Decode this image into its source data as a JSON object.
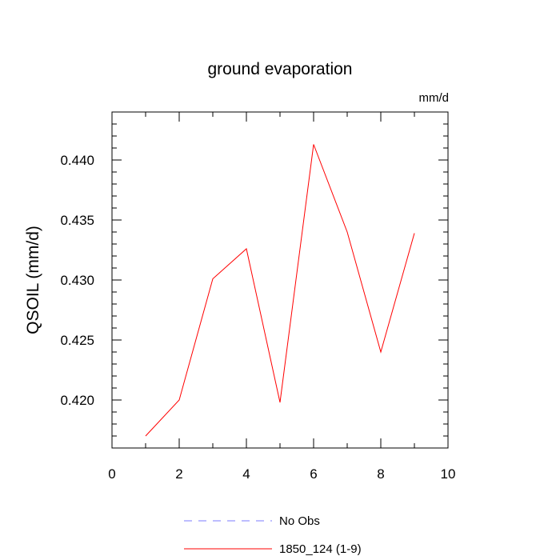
{
  "chart_data": {
    "type": "line",
    "title": "ground evaporation",
    "units_label": "mm/d",
    "xlabel": "",
    "ylabel": "QSOIL  (mm/d)",
    "xlim": [
      0,
      10
    ],
    "ylim": [
      0.416,
      0.444
    ],
    "x_ticks": [
      0,
      2,
      4,
      6,
      8,
      10
    ],
    "x_tick_labels": [
      "0",
      "2",
      "4",
      "6",
      "8",
      "10"
    ],
    "y_ticks": [
      0.42,
      0.425,
      0.43,
      0.435,
      0.44
    ],
    "y_tick_labels": [
      "0.420",
      "0.425",
      "0.430",
      "0.435",
      "0.440"
    ],
    "grid": false,
    "legend_position": "bottom",
    "series": [
      {
        "name": "1850_124 (1-9)",
        "color": "#ff0000",
        "dash": "solid",
        "x": [
          1,
          2,
          3,
          4,
          5,
          6,
          7,
          8,
          9
        ],
        "y": [
          0.417,
          0.42,
          0.4301,
          0.4326,
          0.4198,
          0.4413,
          0.434,
          0.424,
          0.4339
        ]
      }
    ],
    "legend": [
      {
        "label": "No Obs",
        "color": "#7b7bff",
        "dash": "dashed"
      },
      {
        "label": "1850_124 (1-9)",
        "color": "#ff0000",
        "dash": "solid"
      }
    ]
  }
}
